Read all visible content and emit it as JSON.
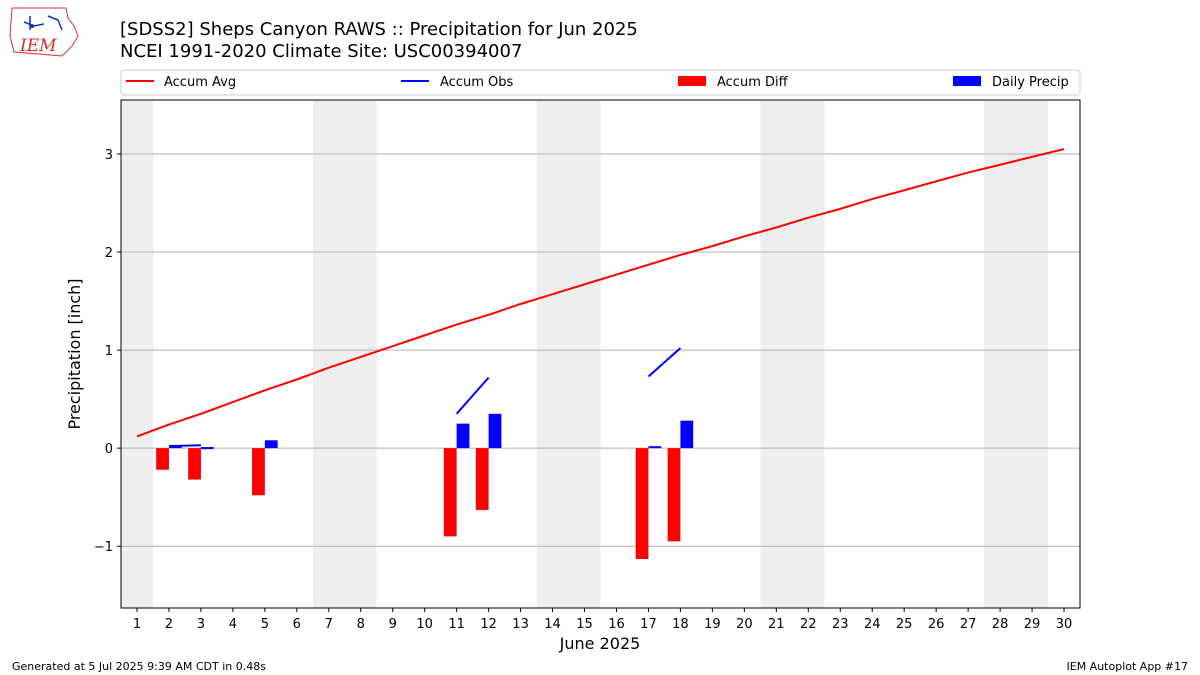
{
  "title_line1": "[SDSS2] Sheps Canyon RAWS :: Precipitation for Jun 2025",
  "title_line2": "NCEI 1991-2020 Climate Site: USC00394007",
  "logo_text": "IEM",
  "footer_left": "Generated at 5 Jul 2025 9:39 AM CDT in 0.48s",
  "footer_right": "IEM Autoplot App #17",
  "colors": {
    "avg": "#ff0000",
    "obs": "#0000ff",
    "diff": "#ff0000",
    "daily": "#0000ff",
    "weekend": "#eeeeee",
    "grid": "#b0b0b0"
  },
  "chart_data": {
    "type": "bar",
    "xlabel": "June 2025",
    "ylabel": "Precipitation [inch]",
    "xlim": [
      0.5,
      30.5
    ],
    "ylim": [
      -1.63,
      3.55
    ],
    "yticks": [
      -1,
      0,
      1,
      2,
      3
    ],
    "ytick_labels": [
      "−1",
      "0",
      "1",
      "2",
      "3"
    ],
    "xticks": [
      1,
      2,
      3,
      4,
      5,
      6,
      7,
      8,
      9,
      10,
      11,
      12,
      13,
      14,
      15,
      16,
      17,
      18,
      19,
      20,
      21,
      22,
      23,
      24,
      25,
      26,
      27,
      28,
      29,
      30
    ],
    "weekend_days": [
      1,
      7,
      8,
      14,
      15,
      21,
      22,
      28,
      29
    ],
    "grid": "horizontal",
    "legend_placement": "top",
    "legend": [
      "Accum Avg",
      "Accum Obs",
      "Accum Diff",
      "Daily Precip"
    ],
    "accum_avg": {
      "name": "Accum Avg",
      "x": [
        1,
        2,
        3,
        4,
        5,
        6,
        7,
        8,
        9,
        10,
        11,
        12,
        13,
        14,
        15,
        16,
        17,
        18,
        19,
        20,
        21,
        22,
        23,
        24,
        25,
        26,
        27,
        28,
        29,
        30
      ],
      "values": [
        0.12,
        0.24,
        0.35,
        0.47,
        0.59,
        0.7,
        0.82,
        0.93,
        1.04,
        1.15,
        1.26,
        1.36,
        1.47,
        1.57,
        1.67,
        1.77,
        1.87,
        1.97,
        2.06,
        2.16,
        2.25,
        2.35,
        2.44,
        2.54,
        2.63,
        2.72,
        2.81,
        2.89,
        2.97,
        3.05
      ]
    },
    "accum_obs": {
      "name": "Accum Obs",
      "segments": [
        {
          "x": [
            2,
            3
          ],
          "values": [
            0.02,
            0.03
          ]
        },
        {
          "x": [
            3,
            3.4
          ],
          "values": [
            0.0,
            0.0
          ]
        },
        {
          "x": [
            11,
            12
          ],
          "values": [
            0.35,
            0.72
          ]
        },
        {
          "x": [
            17,
            18
          ],
          "values": [
            0.73,
            1.02
          ]
        }
      ]
    },
    "accum_diff": {
      "name": "Accum Diff",
      "x": [
        2,
        3,
        5,
        11,
        12,
        17,
        18
      ],
      "values": [
        -0.22,
        -0.32,
        -0.48,
        -0.9,
        -0.63,
        -1.13,
        -0.95
      ]
    },
    "daily_precip": {
      "name": "Daily Precip",
      "x": [
        2,
        3,
        5,
        11,
        12,
        17,
        18
      ],
      "values": [
        0.02,
        0.01,
        0.08,
        0.25,
        0.35,
        0.02,
        0.28
      ]
    }
  }
}
